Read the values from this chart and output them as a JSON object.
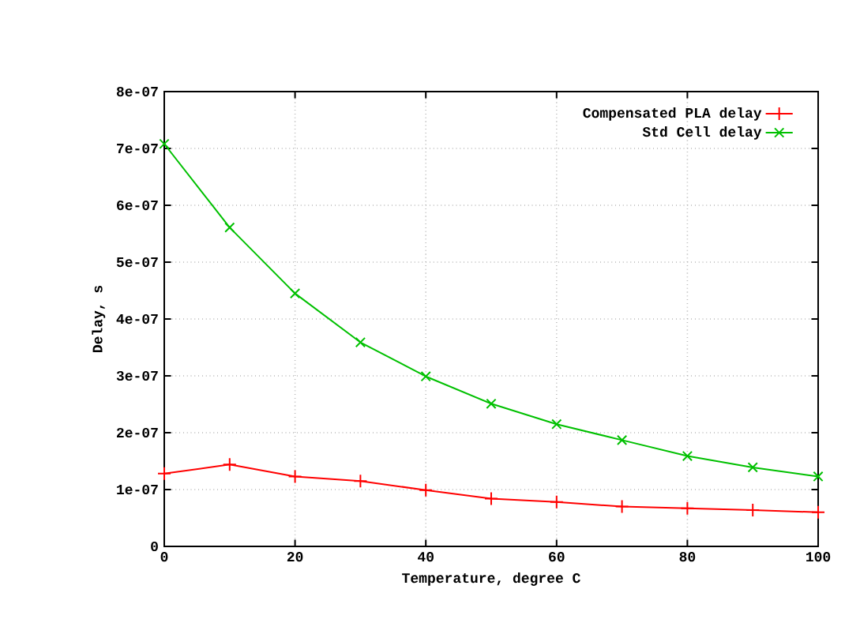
{
  "chart_data": {
    "type": "line",
    "xlabel": "Temperature, degree C",
    "ylabel": "Delay, s",
    "x": [
      0,
      10,
      20,
      30,
      40,
      50,
      60,
      70,
      80,
      90,
      100
    ],
    "series": [
      {
        "name": "Compensated PLA delay",
        "color": "#ff0000",
        "marker": "plus",
        "values": [
          1.28e-07,
          1.44e-07,
          1.23e-07,
          1.15e-07,
          9.9e-08,
          8.4e-08,
          7.8e-08,
          7e-08,
          6.7e-08,
          6.4e-08,
          6e-08
        ]
      },
      {
        "name": "Std Cell delay",
        "color": "#00c000",
        "marker": "cross",
        "values": [
          7.08e-07,
          5.61e-07,
          4.45e-07,
          3.59e-07,
          2.99e-07,
          2.51e-07,
          2.15e-07,
          1.87e-07,
          1.59e-07,
          1.39e-07,
          1.23e-07
        ]
      }
    ],
    "xlim": [
      0,
      100
    ],
    "xticks": [
      0,
      20,
      40,
      60,
      80,
      100
    ],
    "ylim": [
      0,
      8e-07
    ],
    "yticks": [
      0,
      {
        "value": 1e-07,
        "label": "1e-07"
      },
      {
        "value": 2e-07,
        "label": "2e-07"
      },
      {
        "value": 3e-07,
        "label": "3e-07"
      },
      {
        "value": 4e-07,
        "label": "4e-07"
      },
      {
        "value": 5e-07,
        "label": "5e-07"
      },
      {
        "value": 6e-07,
        "label": "6e-07"
      },
      {
        "value": 7e-07,
        "label": "7e-07"
      },
      {
        "value": 8e-07,
        "label": "8e-07"
      }
    ],
    "grid": true,
    "legend": "top right",
    "line_style": "solid"
  }
}
